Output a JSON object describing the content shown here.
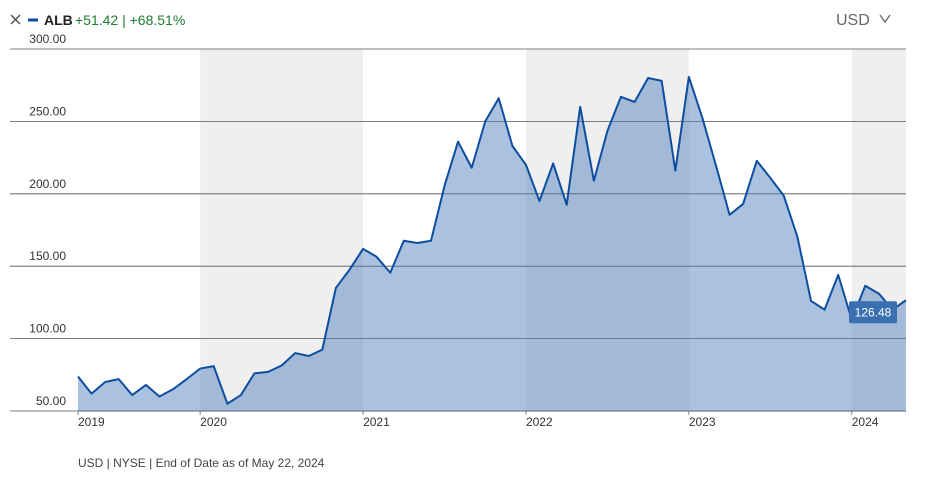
{
  "chart_data": {
    "type": "area",
    "ticker": "ALB",
    "change": "+51.42 | +68.51%",
    "currency": "USD",
    "footnote": "USD | NYSE | End of Date as of May 22, 2024",
    "x": [
      2019.25,
      2019.333,
      2019.417,
      2019.5,
      2019.583,
      2019.667,
      2019.75,
      2019.833,
      2019.917,
      2020.0,
      2020.083,
      2020.167,
      2020.25,
      2020.333,
      2020.417,
      2020.5,
      2020.583,
      2020.667,
      2020.75,
      2020.833,
      2020.917,
      2021.0,
      2021.083,
      2021.167,
      2021.25,
      2021.333,
      2021.417,
      2021.5,
      2021.583,
      2021.667,
      2021.75,
      2021.833,
      2021.917,
      2022.0,
      2022.083,
      2022.167,
      2022.25,
      2022.333,
      2022.417,
      2022.5,
      2022.583,
      2022.667,
      2022.75,
      2022.833,
      2022.917,
      2023.0,
      2023.083,
      2023.167,
      2023.25,
      2023.333,
      2023.417,
      2023.5,
      2023.583,
      2023.667,
      2023.75,
      2023.833,
      2023.917,
      2024.0,
      2024.083,
      2024.167,
      2024.25,
      2024.333
    ],
    "series": [
      {
        "name": "ALB",
        "color": "#0d4ea0",
        "values": [
          73.8,
          62,
          70,
          72,
          61,
          68,
          60,
          65,
          72,
          79.3,
          81,
          55,
          61,
          76,
          77,
          81.4,
          90,
          88,
          92.4,
          135,
          147.6,
          162,
          156.5,
          145.5,
          167.6,
          166,
          167.6,
          205.5,
          236,
          218,
          250,
          266,
          233,
          220,
          195,
          221,
          192.4,
          260,
          209,
          243.4,
          267,
          263.4,
          280,
          278,
          216,
          280.7,
          252.4,
          219.3,
          185.5,
          193,
          222.8,
          211,
          198.6,
          170,
          126,
          120,
          144,
          113,
          136.5,
          131,
          120,
          126.48
        ]
      }
    ],
    "xlim": [
      2019.25,
      2024.333
    ],
    "xticks": [
      2019,
      2020,
      2021,
      2022,
      2023,
      2024
    ],
    "ylim": [
      50,
      300
    ],
    "yticks": [
      {
        "value": 50,
        "label": "50.00"
      },
      {
        "value": 100,
        "label": "100.00"
      },
      {
        "value": 150,
        "label": "150.00"
      },
      {
        "value": 200,
        "label": "200.00"
      },
      {
        "value": 250,
        "label": "250.00"
      },
      {
        "value": 300,
        "label": "300.00"
      }
    ],
    "grid": true
  }
}
